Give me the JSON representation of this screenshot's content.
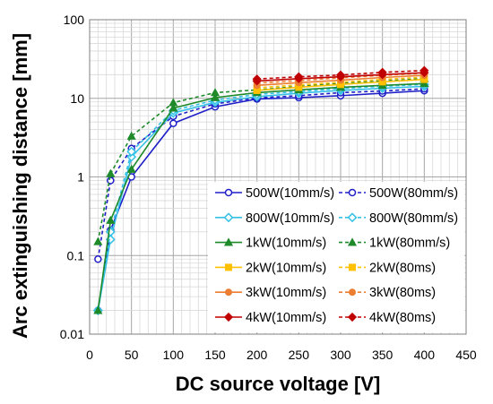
{
  "chart_data": {
    "type": "line",
    "xlabel": "DC source voltage [V]",
    "ylabel": "Arc extinguishing distance [mm]",
    "xlim": [
      0,
      450
    ],
    "ylim": [
      0.01,
      100
    ],
    "yscale": "log",
    "x_ticks": [
      "0",
      "50",
      "100",
      "150",
      "200",
      "250",
      "300",
      "350",
      "400",
      "450"
    ],
    "y_ticks": [
      "0.01",
      "0.1",
      "1",
      "10",
      "100"
    ],
    "grid": true,
    "legend_position": "lower-right inside",
    "series": [
      {
        "name": "500W(10mm/s)",
        "color": "#1f1fc8",
        "marker": "circle-open",
        "line": "solid",
        "x": [
          10,
          25,
          50,
          100,
          150,
          200,
          250,
          300,
          350,
          400
        ],
        "y": [
          0.02,
          0.21,
          1.0,
          4.8,
          7.8,
          9.8,
          10.2,
          10.8,
          11.6,
          12.5
        ]
      },
      {
        "name": "500W(80mm/s)",
        "color": "#1f1fc8",
        "marker": "circle-open",
        "line": "dashed",
        "x": [
          10,
          25,
          50,
          100,
          150,
          200,
          250,
          300,
          350,
          400
        ],
        "y": [
          0.09,
          0.9,
          2.3,
          5.9,
          8.5,
          10.1,
          10.8,
          11.8,
          12.4,
          13.2
        ]
      },
      {
        "name": "800W(10mm/s)",
        "color": "#35c1e6",
        "marker": "diamond-open",
        "line": "solid",
        "x": [
          10,
          25,
          50,
          100,
          150,
          200,
          250,
          300,
          350,
          400
        ],
        "y": [
          0.02,
          0.16,
          1.8,
          6.5,
          8.9,
          10.5,
          11.6,
          12.6,
          13.4,
          14.2
        ]
      },
      {
        "name": "800W(80mm/s)",
        "color": "#35c1e6",
        "marker": "diamond-open",
        "line": "dashed",
        "x": [
          10,
          25,
          50,
          100,
          150,
          200,
          250,
          300,
          350,
          400
        ],
        "y": [
          0.02,
          0.2,
          2.1,
          7.0,
          9.5,
          11.2,
          12.2,
          13.3,
          14.2,
          15.0
        ]
      },
      {
        "name": "1kW(10mm/s)",
        "color": "#1e8a2a",
        "marker": "triangle",
        "line": "solid",
        "x": [
          10,
          25,
          50,
          100,
          150,
          200,
          250,
          300,
          350,
          400
        ],
        "y": [
          0.02,
          0.28,
          1.25,
          7.5,
          10.2,
          11.8,
          12.8,
          13.8,
          14.6,
          15.4
        ]
      },
      {
        "name": "1kW(80mm/s)",
        "color": "#1e8a2a",
        "marker": "triangle",
        "line": "dashed",
        "x": [
          10,
          25,
          50,
          100,
          150,
          200,
          250,
          300,
          350,
          400
        ],
        "y": [
          0.15,
          1.1,
          3.3,
          8.8,
          11.8,
          12.8,
          14.2,
          15.6,
          16.6,
          17.8
        ]
      },
      {
        "name": "2kW(10mm/s)",
        "color": "#ffc000",
        "marker": "square",
        "line": "solid",
        "x": [
          200,
          250,
          300,
          350,
          400
        ],
        "y": [
          12.6,
          13.8,
          15.0,
          16.2,
          17.4
        ]
      },
      {
        "name": "2kW(80ms)",
        "color": "#ffc000",
        "marker": "square",
        "line": "dashed",
        "x": [
          200,
          250,
          300,
          350,
          400
        ],
        "y": [
          13.6,
          14.8,
          16.0,
          17.4,
          18.6
        ]
      },
      {
        "name": "3kW(10mm/s)",
        "color": "#ed7d31",
        "marker": "circle",
        "line": "solid",
        "x": [
          200,
          250,
          300,
          350,
          400
        ],
        "y": [
          14.6,
          15.8,
          17.0,
          18.4,
          19.6
        ]
      },
      {
        "name": "3kW(80ms)",
        "color": "#ed7d31",
        "marker": "circle",
        "line": "dashed",
        "x": [
          200,
          250,
          300,
          350,
          400
        ],
        "y": [
          15.6,
          16.8,
          18.2,
          19.6,
          20.8
        ]
      },
      {
        "name": "4kW(10mm/s)",
        "color": "#c00000",
        "marker": "diamond",
        "line": "solid",
        "x": [
          200,
          250,
          300,
          350,
          400
        ],
        "y": [
          16.6,
          17.8,
          18.8,
          20.0,
          21.2
        ]
      },
      {
        "name": "4kW(80ms)",
        "color": "#c00000",
        "marker": "diamond",
        "line": "dashed",
        "x": [
          200,
          250,
          300,
          350,
          400
        ],
        "y": [
          17.6,
          18.8,
          19.8,
          21.4,
          22.6
        ]
      }
    ]
  }
}
